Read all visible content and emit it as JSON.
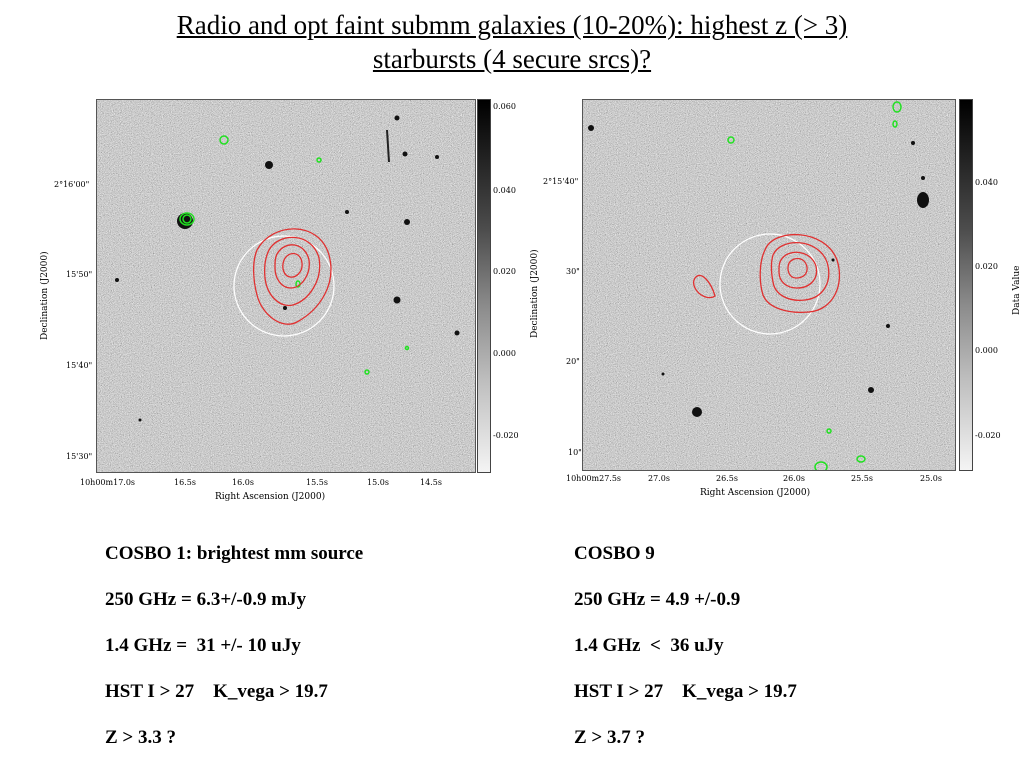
{
  "title": {
    "line1": "Radio and opt faint submm galaxies (10-20%): highest  z (> 3)",
    "line2": "starbursts (4 secure srcs)?"
  },
  "left_panel": {
    "ylabel": "Declination (J2000)",
    "xlabel": "Right Ascension (J2000)",
    "y_ticks": [
      "2°16'00\"",
      "15'50\"",
      "15'40\"",
      "15'30\""
    ],
    "x_ticks": [
      "10h00m17.0s",
      "16.5s",
      "16.0s",
      "15.5s",
      "15.0s",
      "14.5s"
    ],
    "cbar_ticks": [
      "0.060",
      "0.040",
      "0.020",
      "0.000",
      "-0.020"
    ]
  },
  "right_panel": {
    "ylabel": "Declination (J2000)",
    "xlabel": "Right Ascension (J2000)",
    "cbar_label": "Data Value",
    "y_ticks": [
      "2°15'40\"",
      "30\"",
      "20\"",
      "10\""
    ],
    "x_ticks": [
      "10h00m27.5s",
      "27.0s",
      "26.5s",
      "26.0s",
      "25.5s",
      "25.0s"
    ],
    "cbar_ticks": [
      "0.040",
      "0.020",
      "0.000",
      "-0.020"
    ]
  },
  "left_info": {
    "name": "COSBO 1: brightest mm source",
    "flux_250": "250 GHz = 6.3+/-0.9 mJy",
    "flux_14": "1.4 GHz =  31 +/- 10 uJy",
    "optical": "HST I > 27    K_vega > 19.7",
    "redshift": "Z > 3.3 ?"
  },
  "right_info": {
    "name": "COSBO 9",
    "flux_250": "250 GHz = 4.9 +/-0.9",
    "flux_14": "1.4 GHz  <  36 uJy",
    "optical": "HST I > 27    K_vega > 19.7",
    "redshift": "Z > 3.7 ?"
  },
  "colors": {
    "contour_red": "#e03030",
    "contour_green": "#22e022",
    "circle_white": "#ffffff"
  }
}
